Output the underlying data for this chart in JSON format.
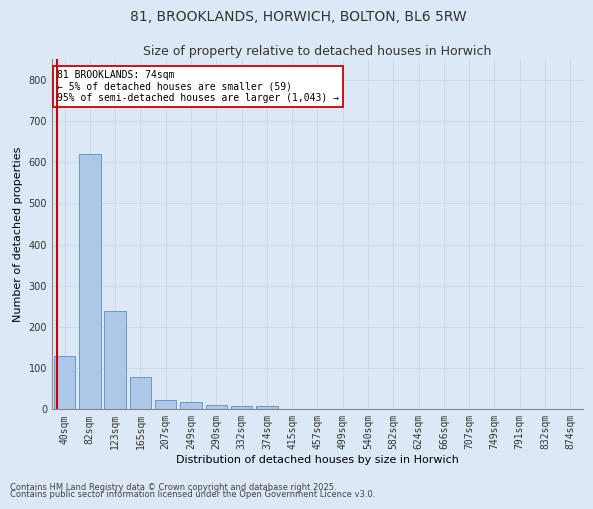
{
  "title": "81, BROOKLANDS, HORWICH, BOLTON, BL6 5RW",
  "subtitle": "Size of property relative to detached houses in Horwich",
  "xlabel": "Distribution of detached houses by size in Horwich",
  "ylabel": "Number of detached properties",
  "categories": [
    "40sqm",
    "82sqm",
    "123sqm",
    "165sqm",
    "207sqm",
    "249sqm",
    "290sqm",
    "332sqm",
    "374sqm",
    "415sqm",
    "457sqm",
    "499sqm",
    "540sqm",
    "582sqm",
    "624sqm",
    "666sqm",
    "707sqm",
    "749sqm",
    "791sqm",
    "832sqm",
    "874sqm"
  ],
  "values": [
    130,
    620,
    238,
    78,
    22,
    18,
    10,
    8,
    8,
    0,
    0,
    0,
    0,
    0,
    0,
    0,
    0,
    0,
    0,
    0,
    0
  ],
  "bar_color": "#aec6e8",
  "bar_edge_color": "#5a8fc2",
  "highlight_color": "#cc0000",
  "annotation_text": "81 BROOKLANDS: 74sqm\n← 5% of detached houses are smaller (59)\n95% of semi-detached houses are larger (1,043) →",
  "annotation_box_color": "#ffffff",
  "annotation_box_edge": "#cc0000",
  "ylim": [
    0,
    850
  ],
  "yticks": [
    0,
    100,
    200,
    300,
    400,
    500,
    600,
    700,
    800
  ],
  "grid_color": "#c8d4e8",
  "bg_color": "#dce8f5",
  "footer1": "Contains HM Land Registry data © Crown copyright and database right 2025.",
  "footer2": "Contains public sector information licensed under the Open Government Licence v3.0.",
  "title_fontsize": 10,
  "subtitle_fontsize": 9,
  "tick_fontsize": 7,
  "label_fontsize": 8,
  "footer_fontsize": 6
}
